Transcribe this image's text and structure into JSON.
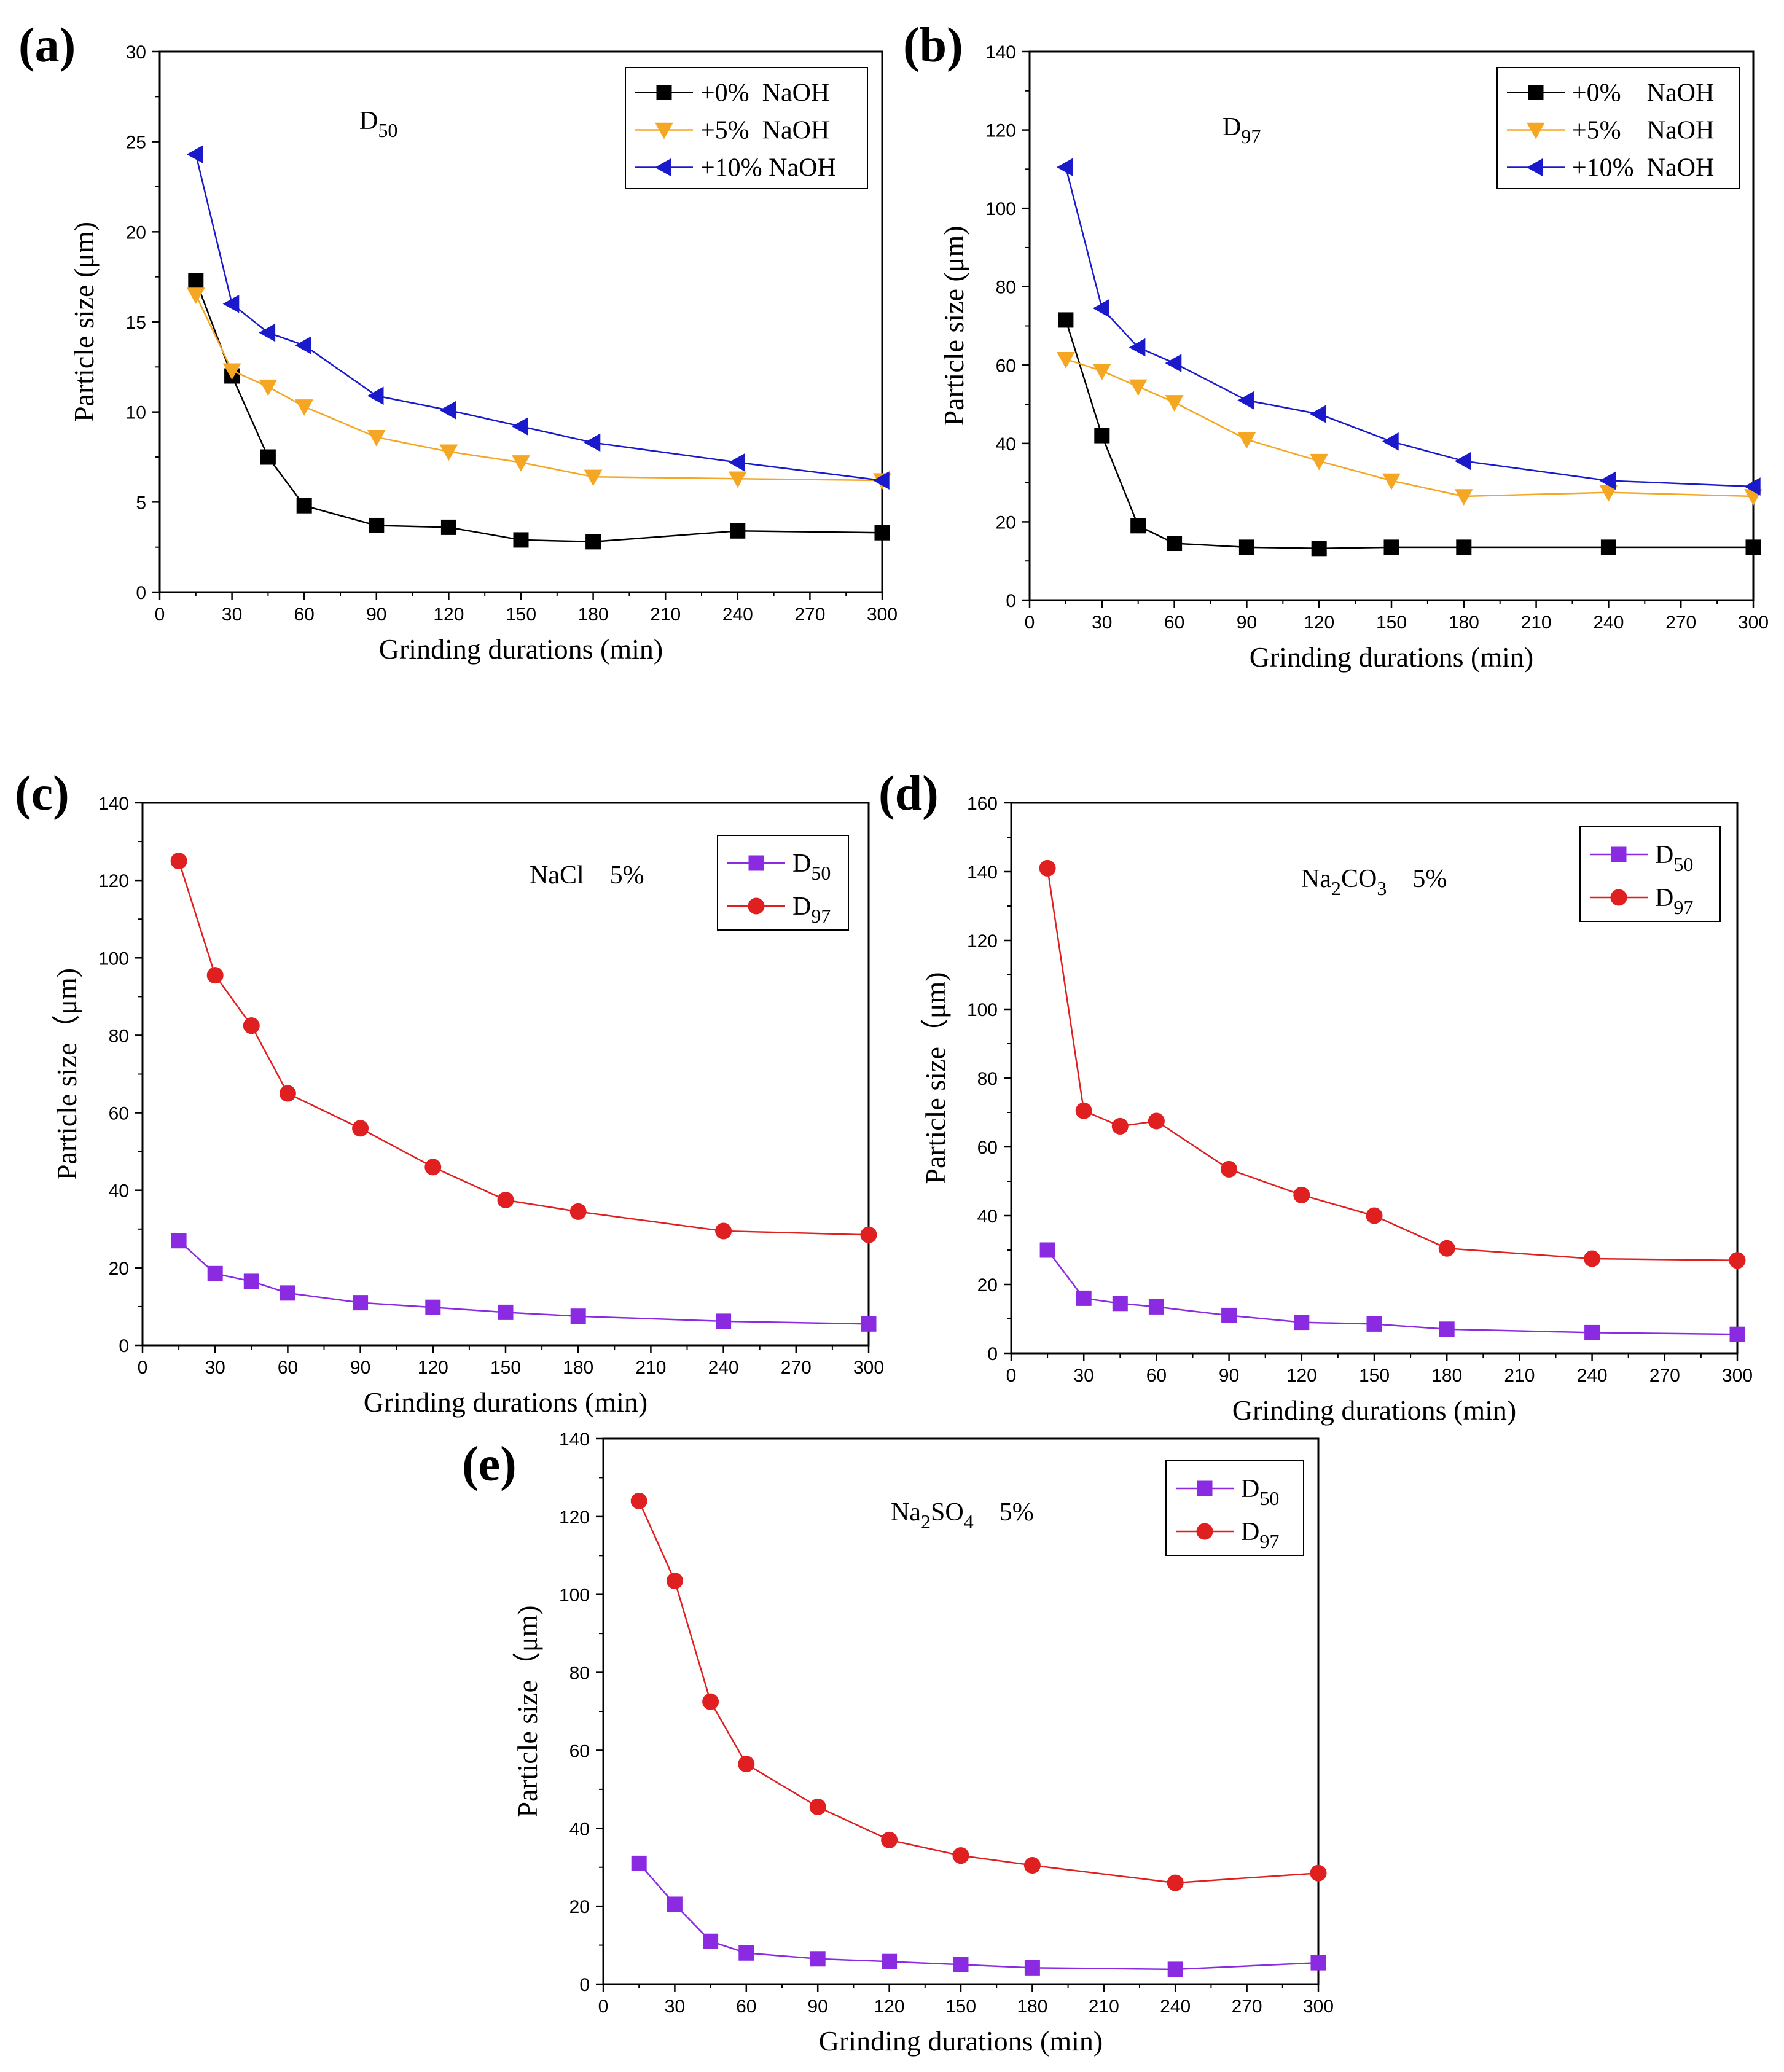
{
  "chart_data": [
    {
      "type": "line",
      "panel": "(a)",
      "annotation": {
        "main": "D",
        "sub": "50",
        "tail": ""
      },
      "xlabel": "Grinding durations (min)",
      "ylabel": "Particle size (μm)",
      "xlim": [
        0,
        300
      ],
      "ylim": [
        0,
        30
      ],
      "xticks": [
        0,
        30,
        60,
        90,
        120,
        150,
        180,
        210,
        240,
        270,
        300
      ],
      "yticks": [
        0,
        5,
        10,
        15,
        20,
        25,
        30
      ],
      "x": [
        15,
        30,
        45,
        60,
        90,
        120,
        150,
        180,
        240,
        300
      ],
      "legend_position": "top-right",
      "series": [
        {
          "name": "+0%  NaOH",
          "color": "#000000",
          "marker": "square",
          "values": [
            17.3,
            12.0,
            7.5,
            4.8,
            3.7,
            3.6,
            2.9,
            2.8,
            3.4,
            3.3
          ]
        },
        {
          "name": "+5%  NaOH",
          "color": "#f5a623",
          "marker": "triangle-down",
          "values": [
            16.5,
            12.3,
            11.4,
            10.3,
            8.6,
            7.8,
            7.2,
            6.4,
            6.3,
            6.2
          ]
        },
        {
          "name": "+10% NaOH",
          "color": "#1a1acc",
          "marker": "triangle-left",
          "values": [
            24.3,
            16.0,
            14.4,
            13.7,
            10.9,
            10.1,
            9.2,
            8.3,
            7.2,
            6.2
          ]
        }
      ]
    },
    {
      "type": "line",
      "panel": "(b)",
      "annotation": {
        "main": "D",
        "sub": "97",
        "tail": ""
      },
      "xlabel": "Grinding durations (min)",
      "ylabel": "Particle size (μm)",
      "xlim": [
        0,
        300
      ],
      "ylim": [
        0,
        140
      ],
      "xticks": [
        0,
        30,
        60,
        90,
        120,
        150,
        180,
        210,
        240,
        270,
        300
      ],
      "yticks": [
        0,
        20,
        40,
        60,
        80,
        100,
        120,
        140
      ],
      "x": [
        15,
        30,
        45,
        60,
        90,
        120,
        150,
        180,
        240,
        300
      ],
      "legend_position": "top-right",
      "series": [
        {
          "name": "+0%    NaOH",
          "color": "#000000",
          "marker": "square",
          "values": [
            71.5,
            42.0,
            19.0,
            14.5,
            13.5,
            13.2,
            13.5,
            13.5,
            13.5,
            13.5
          ]
        },
        {
          "name": "+5%    NaOH",
          "color": "#f5a623",
          "marker": "triangle-down",
          "values": [
            61.5,
            58.5,
            54.5,
            50.5,
            41.0,
            35.5,
            30.5,
            26.5,
            27.5,
            26.5
          ]
        },
        {
          "name": "+10%  NaOH",
          "color": "#1a1acc",
          "marker": "triangle-left",
          "values": [
            110.5,
            74.5,
            64.5,
            60.5,
            51.0,
            47.5,
            40.5,
            35.5,
            30.5,
            29.0
          ]
        }
      ]
    },
    {
      "type": "line",
      "panel": "(c)",
      "annotation": {
        "main": "NaCl",
        "sub": "",
        "tail": "    5%"
      },
      "xlabel": "Grinding durations (min)",
      "ylabel": "Particle size（μm)",
      "xlim": [
        0,
        300
      ],
      "ylim": [
        0,
        140
      ],
      "xticks": [
        0,
        30,
        60,
        90,
        120,
        150,
        180,
        210,
        240,
        270,
        300
      ],
      "yticks": [
        0,
        20,
        40,
        60,
        80,
        100,
        120,
        140
      ],
      "x": [
        15,
        30,
        45,
        60,
        90,
        120,
        150,
        180,
        240,
        300
      ],
      "legend_position": "top-right",
      "series": [
        {
          "name": "D50",
          "label": {
            "main": "D",
            "sub": "50"
          },
          "color": "#8a2be2",
          "marker": "square",
          "values": [
            27.0,
            18.5,
            16.5,
            13.5,
            11.0,
            9.8,
            8.5,
            7.5,
            6.2,
            5.5
          ]
        },
        {
          "name": "D97",
          "label": {
            "main": "D",
            "sub": "97"
          },
          "color": "#e02020",
          "marker": "circle",
          "values": [
            125.0,
            95.5,
            82.5,
            65.0,
            56.0,
            46.0,
            37.5,
            34.5,
            29.5,
            28.5
          ]
        }
      ]
    },
    {
      "type": "line",
      "panel": "(d)",
      "annotation": {
        "main": "Na",
        "sub": "2",
        "main2": "CO",
        "sub2": "3",
        "tail": "    5%"
      },
      "xlabel": "Grinding durations (min)",
      "ylabel": "Particle size（μm)",
      "xlim": [
        0,
        300
      ],
      "ylim": [
        0,
        160
      ],
      "xticks": [
        0,
        30,
        60,
        90,
        120,
        150,
        180,
        210,
        240,
        270,
        300
      ],
      "yticks": [
        0,
        20,
        40,
        60,
        80,
        100,
        120,
        140,
        160
      ],
      "x": [
        15,
        30,
        45,
        60,
        90,
        120,
        150,
        180,
        240,
        300
      ],
      "legend_position": "top-right",
      "series": [
        {
          "name": "D50",
          "label": {
            "main": "D",
            "sub": "50"
          },
          "color": "#8a2be2",
          "marker": "square",
          "values": [
            30.0,
            16.0,
            14.5,
            13.5,
            11.0,
            9.0,
            8.5,
            7.0,
            6.0,
            5.5
          ]
        },
        {
          "name": "D97",
          "label": {
            "main": "D",
            "sub": "97"
          },
          "color": "#e02020",
          "marker": "circle",
          "values": [
            141.0,
            70.5,
            66.0,
            67.5,
            53.5,
            46.0,
            40.0,
            30.5,
            27.5,
            27.0
          ]
        }
      ]
    },
    {
      "type": "line",
      "panel": "(e)",
      "annotation": {
        "main": "Na",
        "sub": "2",
        "main2": "SO",
        "sub2": "4",
        "tail": "    5%"
      },
      "xlabel": "Grinding durations (min)",
      "ylabel": "Particle size（μm)",
      "xlim": [
        0,
        300
      ],
      "ylim": [
        0,
        140
      ],
      "xticks": [
        0,
        30,
        60,
        90,
        120,
        150,
        180,
        210,
        240,
        270,
        300
      ],
      "yticks": [
        0,
        20,
        40,
        60,
        80,
        100,
        120,
        140
      ],
      "x": [
        15,
        30,
        45,
        60,
        90,
        120,
        150,
        180,
        240,
        300
      ],
      "legend_position": "top-right",
      "series": [
        {
          "name": "D50",
          "label": {
            "main": "D",
            "sub": "50"
          },
          "color": "#8a2be2",
          "marker": "square",
          "values": [
            31.0,
            20.5,
            11.0,
            8.0,
            6.5,
            5.8,
            5.0,
            4.2,
            3.8,
            5.5
          ]
        },
        {
          "name": "D97",
          "label": {
            "main": "D",
            "sub": "97"
          },
          "color": "#e02020",
          "marker": "circle",
          "values": [
            124.0,
            103.5,
            72.5,
            56.5,
            45.5,
            37.0,
            33.0,
            30.5,
            26.0,
            28.5
          ]
        }
      ]
    }
  ]
}
